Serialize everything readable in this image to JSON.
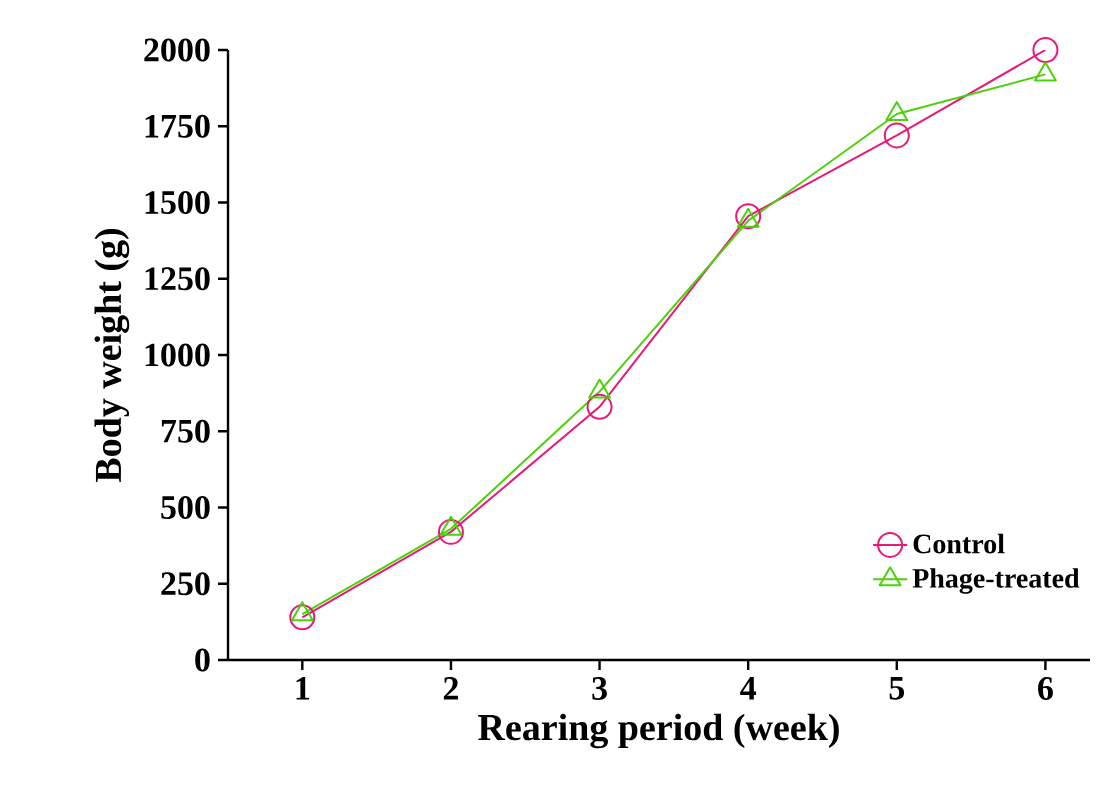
{
  "chart_data": {
    "type": "line",
    "xlabel": "Rearing period (week)",
    "ylabel": "Body weight (g)",
    "x": [
      1,
      2,
      3,
      4,
      5,
      6
    ],
    "xlim": [
      0.5,
      6.3
    ],
    "xticks": [
      1,
      2,
      3,
      4,
      5,
      6
    ],
    "ylim": [
      0,
      2000
    ],
    "yticks": [
      0,
      250,
      500,
      750,
      1000,
      1250,
      1500,
      1750,
      2000
    ],
    "grid": false,
    "legend": "bottom right",
    "line_style": "solid",
    "series": [
      {
        "name": "Control",
        "color": "#e8197a",
        "marker": "circle",
        "values": [
          140,
          420,
          830,
          1455,
          1720,
          2000
        ]
      },
      {
        "name": "Phage-treated",
        "color": "#4cd10a",
        "marker": "triangle",
        "values": [
          150,
          430,
          880,
          1440,
          1790,
          1920
        ]
      }
    ]
  }
}
